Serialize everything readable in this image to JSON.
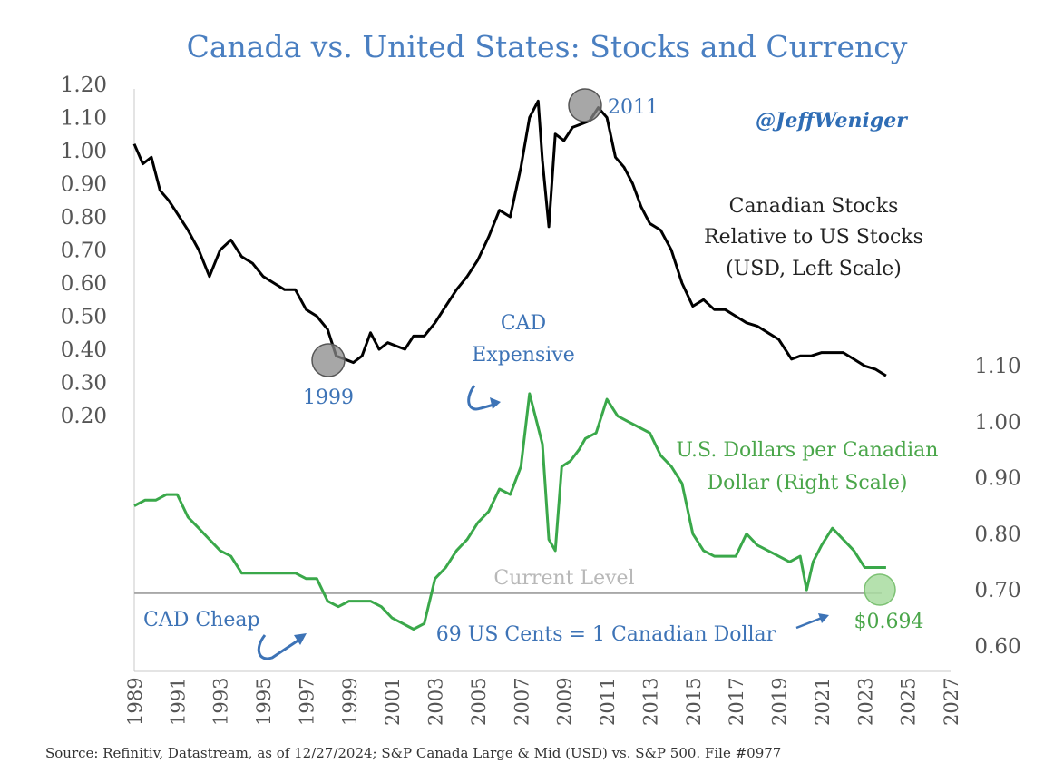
{
  "chart_data": {
    "type": "line",
    "title": "Canada vs. United States: Stocks and Currency",
    "handle": "@JeffWeniger",
    "source": "Source: Refinitiv, Datastream, as of 12/27/2024; S&P Canada Large & Mid (USD) vs. S&P 500. File #0977",
    "x_ticks": [
      "1989",
      "1991",
      "1993",
      "1995",
      "1997",
      "1999",
      "2001",
      "2003",
      "2005",
      "2007",
      "2009",
      "2011",
      "2013",
      "2015",
      "2017",
      "2019",
      "2021",
      "2023",
      "2025",
      "2027"
    ],
    "xlim": [
      1989,
      2027
    ],
    "left_axis": {
      "ticks": [
        "1.20",
        "1.10",
        "1.00",
        "0.90",
        "0.80",
        "0.70",
        "0.60",
        "0.50",
        "0.40",
        "0.30",
        "0.20"
      ],
      "ylim": [
        0.2,
        1.2
      ]
    },
    "right_axis": {
      "ticks": [
        "1.10",
        "1.00",
        "0.90",
        "0.80",
        "0.70",
        "0.60"
      ],
      "ylim": [
        0.6,
        1.1
      ]
    },
    "series": [
      {
        "name": "Canadian Stocks Relative to US Stocks (USD, Left Scale)",
        "axis": "left",
        "color": "#000000",
        "x": [
          1989.0,
          1989.4,
          1989.8,
          1990.2,
          1990.6,
          1991.0,
          1991.5,
          1992.0,
          1992.5,
          1993.0,
          1993.5,
          1994.0,
          1994.5,
          1995.0,
          1995.5,
          1996.0,
          1996.5,
          1997.0,
          1997.5,
          1998.0,
          1998.4,
          1998.8,
          1999.2,
          1999.6,
          2000.0,
          2000.4,
          2000.8,
          2001.2,
          2001.6,
          2002.0,
          2002.5,
          2003.0,
          2003.5,
          2004.0,
          2004.5,
          2005.0,
          2005.5,
          2006.0,
          2006.5,
          2007.0,
          2007.4,
          2007.8,
          2008.0,
          2008.3,
          2008.6,
          2009.0,
          2009.4,
          2009.8,
          2010.2,
          2010.6,
          2011.0,
          2011.4,
          2011.8,
          2012.2,
          2012.6,
          2013.0,
          2013.5,
          2014.0,
          2014.5,
          2015.0,
          2015.5,
          2016.0,
          2016.5,
          2017.0,
          2017.5,
          2018.0,
          2018.5,
          2019.0,
          2019.3,
          2019.6,
          2020.0,
          2020.5,
          2021.0,
          2021.5,
          2022.0,
          2022.5,
          2023.0,
          2023.5,
          2024.0
        ],
        "y": [
          1.02,
          0.96,
          0.98,
          0.88,
          0.85,
          0.81,
          0.76,
          0.7,
          0.62,
          0.7,
          0.73,
          0.68,
          0.66,
          0.62,
          0.6,
          0.58,
          0.58,
          0.52,
          0.5,
          0.46,
          0.38,
          0.37,
          0.36,
          0.38,
          0.45,
          0.4,
          0.42,
          0.41,
          0.4,
          0.44,
          0.44,
          0.48,
          0.53,
          0.58,
          0.62,
          0.67,
          0.74,
          0.82,
          0.8,
          0.95,
          1.1,
          1.15,
          0.97,
          0.77,
          1.05,
          1.03,
          1.07,
          1.08,
          1.09,
          1.13,
          1.1,
          0.98,
          0.95,
          0.9,
          0.83,
          0.78,
          0.76,
          0.7,
          0.6,
          0.53,
          0.55,
          0.52,
          0.52,
          0.5,
          0.48,
          0.47,
          0.45,
          0.43,
          0.4,
          0.37,
          0.38,
          0.38,
          0.39,
          0.39,
          0.39,
          0.37,
          0.35,
          0.34,
          0.32
        ]
      },
      {
        "name": "U.S. Dollars per Canadian Dollar (Right Scale)",
        "axis": "right",
        "color": "#3aa84a",
        "x": [
          1989.0,
          1989.5,
          1990.0,
          1990.5,
          1991.0,
          1991.5,
          1992.0,
          1992.5,
          1993.0,
          1993.5,
          1994.0,
          1994.5,
          1995.0,
          1995.5,
          1996.0,
          1996.5,
          1997.0,
          1997.5,
          1998.0,
          1998.5,
          1999.0,
          1999.5,
          2000.0,
          2000.5,
          2001.0,
          2001.5,
          2002.0,
          2002.5,
          2003.0,
          2003.5,
          2004.0,
          2004.5,
          2005.0,
          2005.5,
          2006.0,
          2006.5,
          2007.0,
          2007.4,
          2007.8,
          2008.0,
          2008.3,
          2008.6,
          2008.9,
          2009.3,
          2009.7,
          2010.0,
          2010.5,
          2011.0,
          2011.5,
          2012.0,
          2012.5,
          2013.0,
          2013.5,
          2014.0,
          2014.5,
          2015.0,
          2015.5,
          2016.0,
          2016.5,
          2017.0,
          2017.5,
          2018.0,
          2018.5,
          2019.0,
          2019.5,
          2020.0,
          2020.3,
          2020.6,
          2021.0,
          2021.5,
          2022.0,
          2022.5,
          2023.0,
          2023.5,
          2024.0
        ],
        "y": [
          0.85,
          0.86,
          0.86,
          0.87,
          0.87,
          0.83,
          0.81,
          0.79,
          0.77,
          0.76,
          0.73,
          0.73,
          0.73,
          0.73,
          0.73,
          0.73,
          0.72,
          0.72,
          0.68,
          0.67,
          0.68,
          0.68,
          0.68,
          0.67,
          0.65,
          0.64,
          0.63,
          0.64,
          0.72,
          0.74,
          0.77,
          0.79,
          0.82,
          0.84,
          0.88,
          0.87,
          0.92,
          1.05,
          0.99,
          0.96,
          0.79,
          0.77,
          0.92,
          0.93,
          0.95,
          0.97,
          0.98,
          1.04,
          1.01,
          1.0,
          0.99,
          0.98,
          0.94,
          0.92,
          0.89,
          0.8,
          0.77,
          0.76,
          0.76,
          0.76,
          0.8,
          0.78,
          0.77,
          0.76,
          0.75,
          0.76,
          0.7,
          0.75,
          0.78,
          0.81,
          0.79,
          0.77,
          0.74,
          0.74,
          0.74
        ]
      }
    ],
    "current_level": {
      "value": 0.694,
      "axis": "right",
      "label": "Current Level"
    },
    "annotations": {
      "year_2011": "2011",
      "year_1999": "1999",
      "stocks_label": [
        "Canadian Stocks",
        "Relative to US Stocks",
        "(USD, Left Scale)"
      ],
      "cad_expensive": [
        "CAD",
        "Expensive"
      ],
      "currency_label": [
        "U.S. Dollars per Canadian",
        "Dollar (Right Scale)"
      ],
      "cad_cheap": "CAD Cheap",
      "cents_note": "69 US Cents = 1 Canadian Dollar",
      "current_value": "$0.694"
    },
    "colors": {
      "title": "#4a7fc1",
      "stocks_line": "#000000",
      "currency_line": "#3aa84a",
      "current_level_line": "#a8a8a8",
      "annotation_blue": "#3d73b6",
      "marker_grey": "#8a8a8a",
      "marker_green": "#a8dca0"
    }
  }
}
